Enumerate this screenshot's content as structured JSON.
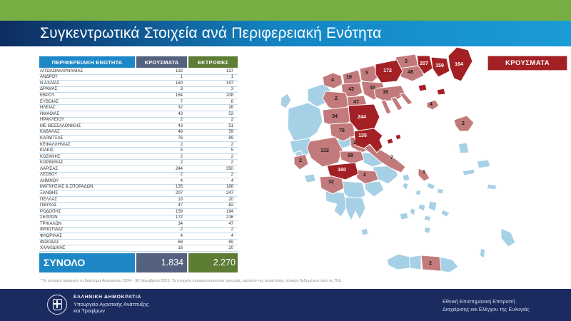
{
  "title": "Συγκεντρωτικά Στοιχεία ανά Περιφερειακή Ενότητα",
  "colors": {
    "green": "#76ae43",
    "blue": "#1e88c7",
    "slate": "#54617f",
    "olive": "#5d7c34",
    "navy": "#1c2b5f",
    "title_navy": "#0d2c60",
    "title_blue": "#1b9cd6",
    "map_none": "#a6d0e6",
    "map_mid": "#c27a7c",
    "map_high": "#a32024"
  },
  "table": {
    "header_region": "ΠΕΡΙΦΕΡΕΙΑΚΗ ΕΝΟΤΗΤΑ",
    "header_cases": "ΚΡΟΥΣΜΑΤΑ",
    "header_farms": "ΕΚΤΡΟΦΕΣ",
    "total_label": "ΣΥΝΟΛΟ",
    "total_cases": "1.834",
    "total_farms": "2.270"
  },
  "chart_data": {
    "type": "table",
    "title": "Συγκεντρωτικά Στοιχεία ανά Περιφερειακή Ενότητα",
    "categories": [
      "ΑΙΤΩΛΟΑΚΑΡΝΑΝΙΑΣ",
      "ΑΝΔΡΟΥ",
      "Ν.ΑΧΑΪΑΣ",
      "ΔΡΑΜΑΣ",
      "ΕΒΡΟΥ",
      "ΕΥΒΟΙΑΣ",
      "ΗΛΕΙΑΣ",
      "ΗΜΑΘΙΑΣ",
      "ΗΡΑΚΛΕΙΟΥ",
      "ΜΕ ΘΕΣΣΑΛΟΝΙΚΗΣ",
      "ΚΑΒΑΛΑΣ",
      "ΚΑΡΔΙΤΣΑΣ",
      "ΚΕΦΑΛΛΗΝΙΑΣ",
      "ΚΙΛΚΙΣ",
      "ΚΟΖΑΝΗΣ",
      "ΚΟΡΙΝΘΙΑΣ",
      "ΛΑΡΙΣΑΣ",
      "ΛΕΣΒΟΥ",
      "ΛΗΜΝΟΥ",
      "ΜΑΓΝΗΣΙΑΣ & ΣΠΟΡΑΔΩΝ",
      "ΞΑΝΘΗΣ",
      "ΠΕΛΛΑΣ",
      "ΠΙΕΡΙΑΣ",
      "ΡΟΔΟΠΗΣ",
      "ΣΕΡΡΩΝ",
      "ΤΡΙΚΑΛΩΝ",
      "ΦΘΙΩΤΙΔΑΣ",
      "ΦΛΩΡΙΝΑΣ",
      "ΦΩΚΙΔΑΣ",
      "ΧΑΛΚΙΔΙΚΗΣ"
    ],
    "series": [
      {
        "name": "ΚΡΟΥΣΜΑΤΑ",
        "values": [
          132,
          1,
          160,
          3,
          164,
          7,
          32,
          43,
          2,
          43,
          48,
          76,
          2,
          5,
          2,
          2,
          244,
          2,
          4,
          135,
          207,
          18,
          47,
          159,
          172,
          34,
          2,
          4,
          68,
          16
        ]
      },
      {
        "name": "ΕΚΤΡΟΦΕΣ",
        "values": [
          137,
          1,
          197,
          3,
          208,
          8,
          26,
          53,
          2,
          51,
          59,
          89,
          2,
          5,
          2,
          2,
          350,
          2,
          4,
          188,
          247,
          20,
          62,
          194,
          216,
          47,
          2,
          4,
          69,
          20
        ]
      }
    ],
    "totals": {
      "ΚΡΟΥΣΜΑΤΑ": "1.834",
      "ΕΚΤΡΟΦΕΣ": "2.270"
    },
    "legend_position": "top-right",
    "map_type": "choropleth-greece"
  },
  "map": {
    "legend_label": "ΚΡΟΥΣΜΑΤΑ",
    "labels": [
      {
        "region_key": "florinas",
        "region": "ΦΛΩΡΙΝΑΣ",
        "value": 4,
        "tone": "dark"
      },
      {
        "region_key": "pellas",
        "region": "ΠΕΛΛΑΣ",
        "value": 18,
        "tone": "dark"
      },
      {
        "region_key": "kilkis",
        "region": "ΚΙΛΚΙΣ",
        "value": 5,
        "tone": "dark"
      },
      {
        "region_key": "serron",
        "region": "ΣΕΡΡΩΝ",
        "value": 172,
        "tone": "light"
      },
      {
        "region_key": "dramas",
        "region": "ΔΡΑΜΑΣ",
        "value": 3,
        "tone": "dark"
      },
      {
        "region_key": "kavalas",
        "region": "ΚΑΒΑΛΑΣ",
        "value": 48,
        "tone": "dark"
      },
      {
        "region_key": "xanthis",
        "region": "ΞΑΝΘΗΣ",
        "value": 207,
        "tone": "light"
      },
      {
        "region_key": "rodopis",
        "region": "ΡΟΔΟΠΗΣ",
        "value": 159,
        "tone": "light"
      },
      {
        "region_key": "evrou",
        "region": "ΕΒΡΟΥ",
        "value": 164,
        "tone": "light"
      },
      {
        "region_key": "imathias",
        "region": "ΗΜΑΘΙΑΣ",
        "value": 43,
        "tone": "dark"
      },
      {
        "region_key": "thessalonikis",
        "region": "ΜΕ ΘΕΣΣΑΛΟΝΙΚΗΣ",
        "value": 43,
        "tone": "dark"
      },
      {
        "region_key": "kozanis",
        "region": "ΚΟΖΑΝΗΣ",
        "value": 2,
        "tone": "dark"
      },
      {
        "region_key": "pierias",
        "region": "ΠΙΕΡΙΑΣ",
        "value": 47,
        "tone": "dark"
      },
      {
        "region_key": "chalkidikis",
        "region": "ΧΑΛΚΙΔΙΚΗΣ",
        "value": 16,
        "tone": "dark"
      },
      {
        "region_key": "limnou",
        "region": "ΛΗΜΝΟΥ",
        "value": 4,
        "tone": "dark"
      },
      {
        "region_key": "trikalon",
        "region": "ΤΡΙΚΑΛΩΝ",
        "value": 34,
        "tone": "dark"
      },
      {
        "region_key": "larisas",
        "region": "ΛΑΡΙΣΑΣ",
        "value": 244,
        "tone": "light"
      },
      {
        "region_key": "karditsas",
        "region": "ΚΑΡΔΙΤΣΑΣ",
        "value": 76,
        "tone": "dark"
      },
      {
        "region_key": "magnisias",
        "region": "ΜΑΓΝΗΣΙΑΣ & ΣΠΟΡΑΔΩΝ",
        "value": 135,
        "tone": "light"
      },
      {
        "region_key": "lesvou",
        "region": "ΛΕΣΒΟΥ",
        "value": 2,
        "tone": "dark"
      },
      {
        "region_key": "aitoloakarnanias",
        "region": "ΑΙΤΩΛΟΑΚΑΡΝΑΝΙΑΣ",
        "value": 132,
        "tone": "dark"
      },
      {
        "region_key": "fthiotidas",
        "region": "ΦΘΙΩΤΙΔΑΣ",
        "value": 2,
        "tone": "dark"
      },
      {
        "region_key": "fokidas",
        "region": "ΦΩΚΙΔΑΣ",
        "value": 68,
        "tone": "dark"
      },
      {
        "region_key": "evias",
        "region": "ΕΥΒΟΙΑΣ",
        "value": 7,
        "tone": "dark"
      },
      {
        "region_key": "kefallinias",
        "region": "ΚΕΦΑΛΛΗΝΙΑΣ",
        "value": 2,
        "tone": "dark"
      },
      {
        "region_key": "achaias",
        "region": "Ν.ΑΧΑΪΑΣ",
        "value": 160,
        "tone": "light"
      },
      {
        "region_key": "korinthias",
        "region": "ΚΟΡΙΝΘΙΑΣ",
        "value": 2,
        "tone": "dark"
      },
      {
        "region_key": "ileias",
        "region": "ΗΛΕΙΑΣ",
        "value": 32,
        "tone": "dark"
      },
      {
        "region_key": "androu",
        "region": "ΑΝΔΡΟΥ",
        "value": 1,
        "tone": "dark"
      },
      {
        "region_key": "irakleiou",
        "region": "ΗΡΑΚΛΕΙΟΥ",
        "value": 2,
        "tone": "dark"
      }
    ]
  },
  "footnote": "*Τα στοιχεία αφορούν το διάστημα Αυγούστου 2024 - 30 Νοεμβρίου 2025. Τα στοιχεία επικαιροποιούνται συνεχώς, κατόπιν της αποστολής τελικών δεδομένων από τις Π.Ε.",
  "footer": {
    "ministry_title": "ΕΛΛΗΝΙΚΗ ΔΗΜΟΚΡΑΤΙΑ",
    "ministry_line1": "Υπουργείο Αγροτικής Ανάπτυξης",
    "ministry_line2": "και Τροφίμων",
    "committee_line1": "Εθνική Επιστημονική Επιτροπή",
    "committee_line2": "Διαχείρισης και Ελέγχου της Ευλογιάς"
  }
}
